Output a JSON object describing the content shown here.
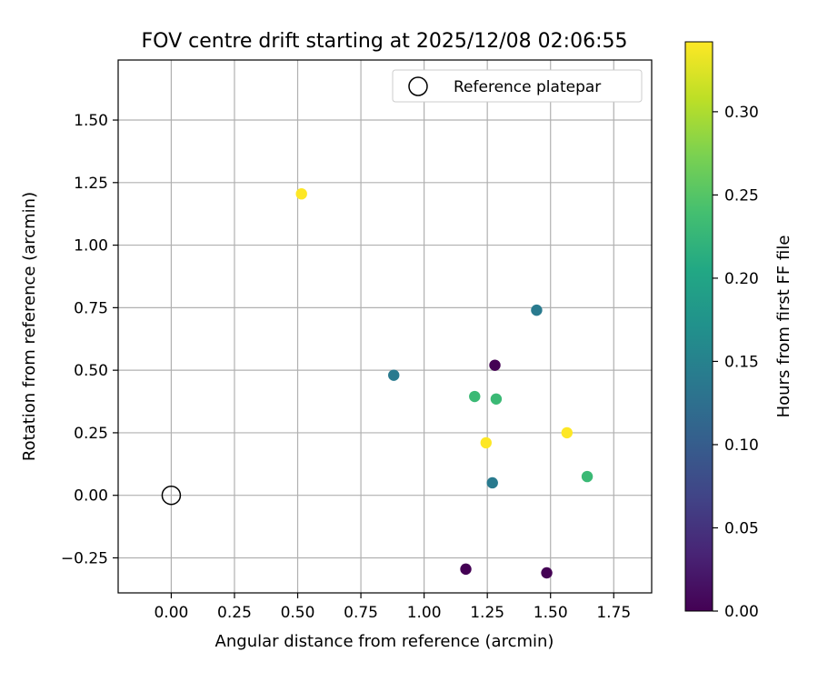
{
  "chart_data": {
    "type": "scatter",
    "title": "FOV centre drift starting at 2025/12/08 02:06:55",
    "xlabel": "Angular distance from reference (arcmin)",
    "ylabel": "Rotation from reference (arcmin)",
    "xlim": [
      -0.21,
      1.9
    ],
    "ylim": [
      -0.39,
      1.74
    ],
    "grid": true,
    "x_ticks": [
      0.0,
      0.25,
      0.5,
      0.75,
      1.0,
      1.25,
      1.5,
      1.75
    ],
    "x_tick_labels": [
      "0.00",
      "0.25",
      "0.50",
      "0.75",
      "1.00",
      "1.25",
      "1.50",
      "1.75"
    ],
    "y_ticks": [
      -0.25,
      0.0,
      0.25,
      0.5,
      0.75,
      1.0,
      1.25,
      1.5
    ],
    "y_tick_labels": [
      "−0.25",
      "0.00",
      "0.25",
      "0.50",
      "0.75",
      "1.00",
      "1.25",
      "1.50"
    ],
    "reference": {
      "label": "Reference platepar",
      "x": 0.0,
      "y": 0.0
    },
    "legend": {
      "position": "top-right",
      "entries": [
        "Reference platepar"
      ]
    },
    "colorbar": {
      "label": "Hours from first FF file",
      "colormap": "viridis",
      "range": [
        0.0,
        0.342
      ],
      "ticks": [
        0.0,
        0.05,
        0.1,
        0.15,
        0.2,
        0.25,
        0.3
      ],
      "tick_labels": [
        "0.00",
        "0.05",
        "0.10",
        "0.15",
        "0.20",
        "0.25",
        "0.30"
      ]
    },
    "points": [
      {
        "x": 1.28,
        "y": 0.52,
        "hours": 0.0
      },
      {
        "x": 1.165,
        "y": -0.295,
        "hours": 0.0
      },
      {
        "x": 1.485,
        "y": -0.31,
        "hours": 0.0
      },
      {
        "x": 0.88,
        "y": 0.48,
        "hours": 0.14
      },
      {
        "x": 1.27,
        "y": 0.05,
        "hours": 0.14
      },
      {
        "x": 1.445,
        "y": 0.74,
        "hours": 0.14
      },
      {
        "x": 1.2,
        "y": 0.395,
        "hours": 0.23
      },
      {
        "x": 1.285,
        "y": 0.385,
        "hours": 0.23
      },
      {
        "x": 1.645,
        "y": 0.075,
        "hours": 0.23
      },
      {
        "x": 0.515,
        "y": 1.205,
        "hours": 0.342
      },
      {
        "x": 1.245,
        "y": 0.21,
        "hours": 0.342
      },
      {
        "x": 1.565,
        "y": 0.25,
        "hours": 0.342
      }
    ]
  }
}
